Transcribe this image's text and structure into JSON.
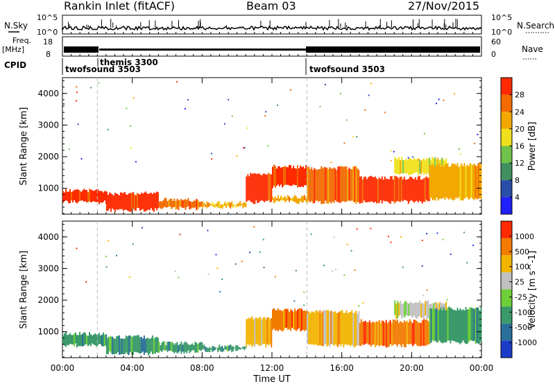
{
  "header": {
    "station": "Rankin Inlet (fitACF)",
    "beam": "Beam 03",
    "date": "27/Nov/2015"
  },
  "info_panels": {
    "nsky_label": "N.Sky",
    "nsky_ticks": [
      "10^5",
      "10^0"
    ],
    "nsearch_label": "N.Search",
    "nsearch_ticks": [
      "10^5",
      "10^0"
    ],
    "freq_label": "Freq.",
    "freq_unit": "[MHz]",
    "freq_ticks": [
      "18",
      "8"
    ],
    "nave_label": "Nave",
    "nave_ticks": [
      "60",
      "0"
    ],
    "cpid_label": "CPID",
    "cpid_segments": [
      {
        "name": "twofsound 3503",
        "start_h": 0.0
      },
      {
        "name": "themis 3300",
        "start_h": 2.0
      },
      {
        "name": "twofsound 3503",
        "start_h": 14.0
      }
    ]
  },
  "chart_data": [
    {
      "type": "heatmap",
      "title": "",
      "xlabel": "Time UT",
      "ylabel": "Slant Range [km]",
      "xlim": [
        0,
        24
      ],
      "ylim": [
        180,
        4500
      ],
      "x_ticks": [
        "00:00",
        "04:00",
        "08:00",
        "12:00",
        "16:00",
        "20:00",
        "00:00"
      ],
      "y_ticks": [
        "1000",
        "2000",
        "3000",
        "4000"
      ],
      "colorbar_label": "Power [dB]",
      "colorbar_ticks": [
        "28",
        "24",
        "20",
        "16",
        "12",
        "8",
        "4"
      ],
      "colors": [
        "#2020ff",
        "#2a4da8",
        "#3f8f5f",
        "#6fc24a",
        "#f0e01c",
        "#f2a800",
        "#f26a00",
        "#ff2a00"
      ],
      "regions": [
        {
          "t0": 0.0,
          "t1": 2.5,
          "r0": 500,
          "r1": 1000,
          "level": 7
        },
        {
          "t0": 2.5,
          "t1": 5.5,
          "r0": 250,
          "r1": 900,
          "level": 7
        },
        {
          "t0": 5.5,
          "t1": 8.0,
          "r0": 300,
          "r1": 700,
          "level": 6
        },
        {
          "t0": 8.0,
          "t1": 10.5,
          "r0": 350,
          "r1": 600,
          "level": 5
        },
        {
          "t0": 10.5,
          "t1": 12.0,
          "r0": 500,
          "r1": 1500,
          "level": 7
        },
        {
          "t0": 12.0,
          "t1": 14.0,
          "r0": 1000,
          "r1": 1750,
          "level": 7
        },
        {
          "t0": 12.0,
          "t1": 14.0,
          "r0": 500,
          "r1": 800,
          "level": 5
        },
        {
          "t0": 14.0,
          "t1": 17.0,
          "r0": 500,
          "r1": 1700,
          "level": 6
        },
        {
          "t0": 17.0,
          "t1": 21.0,
          "r0": 500,
          "r1": 1400,
          "level": 7
        },
        {
          "t0": 19.0,
          "t1": 22.0,
          "r0": 1400,
          "r1": 2000,
          "level": 4
        },
        {
          "t0": 21.0,
          "t1": 24.0,
          "r0": 600,
          "r1": 1800,
          "level": 5
        }
      ]
    },
    {
      "type": "heatmap",
      "title": "",
      "xlabel": "Time UT",
      "ylabel": "Slant Range [km]",
      "xlim": [
        0,
        24
      ],
      "ylim": [
        180,
        4500
      ],
      "x_ticks": [
        "00:00",
        "04:00",
        "08:00",
        "12:00",
        "16:00",
        "20:00",
        "00:00"
      ],
      "y_ticks": [
        "1000",
        "2000",
        "3000",
        "4000"
      ],
      "colorbar_label": "Velocity [m s^-1]",
      "colorbar_ticks": [
        "1000",
        "500",
        "100",
        "25",
        "-25",
        "-100",
        "-500",
        "-1000"
      ],
      "colors": [
        "#1c3cc8",
        "#2a6f9a",
        "#3a9a6a",
        "#6fcf3a",
        "#c0c0c0",
        "#f2b400",
        "#f27a00",
        "#ff2a00"
      ],
      "regions": [
        {
          "t0": 0.0,
          "t1": 2.5,
          "r0": 500,
          "r1": 1000,
          "level": 2
        },
        {
          "t0": 2.5,
          "t1": 5.5,
          "r0": 250,
          "r1": 900,
          "level": 2
        },
        {
          "t0": 5.5,
          "t1": 8.0,
          "r0": 300,
          "r1": 700,
          "level": 2
        },
        {
          "t0": 8.0,
          "t1": 10.5,
          "r0": 350,
          "r1": 600,
          "level": 2
        },
        {
          "t0": 10.5,
          "t1": 12.0,
          "r0": 500,
          "r1": 1500,
          "level": 5
        },
        {
          "t0": 12.0,
          "t1": 14.0,
          "r0": 1000,
          "r1": 1750,
          "level": 6
        },
        {
          "t0": 14.0,
          "t1": 17.0,
          "r0": 500,
          "r1": 1700,
          "level": 5
        },
        {
          "t0": 17.0,
          "t1": 21.0,
          "r0": 500,
          "r1": 1400,
          "level": 6
        },
        {
          "t0": 19.0,
          "t1": 22.0,
          "r0": 1400,
          "r1": 2000,
          "level": 4
        },
        {
          "t0": 21.0,
          "t1": 24.0,
          "r0": 600,
          "r1": 1800,
          "level": 2
        }
      ]
    }
  ]
}
